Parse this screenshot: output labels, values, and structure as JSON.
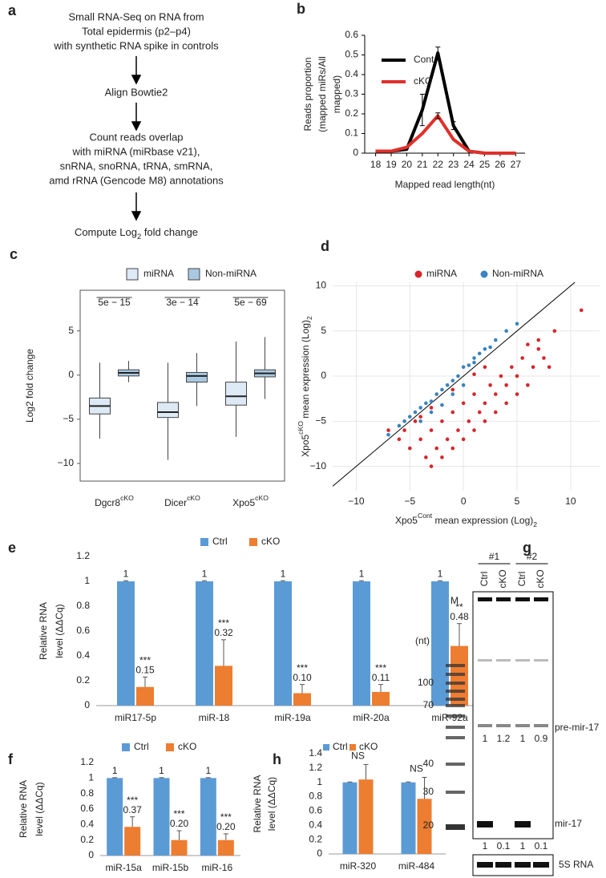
{
  "flowchart": {
    "panel": "a",
    "steps": [
      {
        "lines": [
          "Small RNA-Seq on RNA from",
          "Total epidermis (p2–p4)",
          "with synthetic RNA spike in controls"
        ]
      },
      {
        "lines": [
          "Align Bowtie2"
        ]
      },
      {
        "lines": [
          "Count reads overlap",
          "with miRNA (miRbase v21),",
          "snRNA, snoRNA, tRNA, smRNA,",
          "amd rRNA (Gencode M8) annotations"
        ]
      },
      {
        "parts": [
          {
            "t": "Compute Log"
          },
          {
            "sub": "2"
          },
          {
            "t": " fold change"
          }
        ]
      }
    ]
  },
  "chart_data": [
    {
      "panel": "b",
      "type": "line",
      "y_label": [
        "Reads proportion",
        "(mapped miRs/All",
        "mapped)"
      ],
      "x_label": "Mapped read length(nt)",
      "x": [
        18,
        19,
        20,
        21,
        22,
        23,
        24,
        25,
        26,
        27
      ],
      "xlim": [
        17.3,
        27.6
      ],
      "xticks": [
        18,
        19,
        20,
        21,
        22,
        23,
        24,
        25,
        26,
        27
      ],
      "ylim": [
        0,
        0.6
      ],
      "yticks": [
        0,
        0.1,
        0.2,
        0.3,
        0.4,
        0.5,
        0.6
      ],
      "legend": "upper right",
      "series": [
        {
          "name": "Cont.",
          "color": "#000000",
          "values": [
            0.01,
            0.01,
            0.02,
            0.22,
            0.51,
            0.14,
            0.01,
            0,
            0,
            0
          ],
          "errors": [
            null,
            null,
            null,
            0.08,
            0.03,
            0.02,
            null,
            null,
            null,
            null
          ]
        },
        {
          "name": "cKO",
          "color": "#e0302a",
          "values": [
            0.01,
            0.01,
            0.03,
            0.1,
            0.19,
            0.07,
            0.01,
            0,
            0,
            0
          ],
          "errors": [
            null,
            null,
            null,
            null,
            0.015,
            null,
            null,
            null,
            null,
            null
          ]
        }
      ]
    },
    {
      "panel": "c",
      "type": "box",
      "y_label": "Log2 fold change",
      "categories": [
        [
          {
            "t": "Dgcr8"
          },
          {
            "sup": "cKO"
          }
        ],
        [
          {
            "t": "Dicer"
          },
          {
            "sup": "cKO"
          }
        ],
        [
          {
            "t": "Xpo5"
          },
          {
            "sup": "cKO"
          }
        ]
      ],
      "p_values": [
        "5e − 15",
        "3e − 14",
        "5e − 69"
      ],
      "ylim": [
        -12,
        9.6
      ],
      "yticks": [
        {
          "value": -10,
          "label": "−10"
        },
        {
          "value": -5,
          "label": "−5"
        },
        0,
        5
      ],
      "legend": "top",
      "series": [
        {
          "name": "miRNA",
          "color": "#dde9f5",
          "boxes": [
            {
              "min": -7.2,
              "q1": -4.4,
              "median": -3.5,
              "q3": -2.6,
              "max": 1.4
            },
            {
              "min": -9.6,
              "q1": -4.8,
              "median": -4.2,
              "q3": -3.1,
              "max": 1.4
            },
            {
              "min": -7,
              "q1": -3.4,
              "median": -2.4,
              "q3": -0.8,
              "max": 3.8
            }
          ]
        },
        {
          "name": "Non-miRNA",
          "color": "#a9c9e2",
          "boxes": [
            {
              "min": -0.8,
              "q1": -0.1,
              "median": 0.25,
              "q3": 0.6,
              "max": 1.6
            },
            {
              "min": -3.5,
              "q1": -0.8,
              "median": -0.1,
              "q3": 0.3,
              "max": 2.5
            },
            {
              "min": -2.7,
              "q1": -0.2,
              "median": 0.2,
              "q3": 0.6,
              "max": 4.3
            }
          ]
        }
      ]
    },
    {
      "panel": "d",
      "type": "scatter",
      "x_label": [
        {
          "t": "Xpo5"
        },
        {
          "sup": "Cont"
        },
        {
          "t": " mean expression (Log)"
        },
        {
          "sub": "2"
        }
      ],
      "y_label": [
        {
          "t": "Xpo5"
        },
        {
          "sup": "cKO"
        },
        {
          "t": " mean expression (Log)"
        },
        {
          "sub": "2"
        }
      ],
      "xlim": [
        -12.2,
        12.7
      ],
      "ylim": [
        -12.7,
        10.4
      ],
      "xticks": [
        {
          "value": -10,
          "label": "−10"
        },
        {
          "value": -5,
          "label": "−5"
        },
        0,
        5,
        10
      ],
      "yticks": [
        {
          "value": -10,
          "label": "−10"
        },
        {
          "value": -5,
          "label": "−5"
        },
        0,
        5,
        10
      ],
      "grid": true,
      "identity_line": true,
      "legend": "top",
      "series": [
        {
          "name": "miRNA",
          "color": "#d7262b",
          "x": [
            -7,
            -6,
            -5.5,
            -5,
            -4.5,
            -4,
            -3.5,
            -3,
            -2.5,
            -2,
            -1.5,
            -1,
            -0.5,
            0,
            0.5,
            1,
            1.5,
            2,
            2.5,
            3,
            3.5,
            4,
            4.5,
            5,
            5.5,
            6,
            6.5,
            7,
            7.5,
            8,
            -3,
            -2,
            -1,
            0,
            1,
            2,
            3,
            4,
            5,
            11,
            -4,
            -3,
            -1,
            1,
            2,
            6,
            7,
            8.5
          ],
          "values": [
            -6,
            -7,
            -6,
            -8,
            -5,
            -7,
            -9,
            -6,
            -8,
            -5,
            -7,
            -4,
            -6,
            -3,
            -5,
            -2,
            -4,
            -3,
            -1,
            -2,
            0,
            -1,
            1,
            0,
            2,
            -1,
            1,
            3,
            2,
            1,
            -10,
            -9,
            -8,
            -7,
            -6,
            -5,
            -4,
            -3,
            -2,
            7.3,
            -4.5,
            -3.5,
            -1.5,
            0.2,
            1,
            3.5,
            4,
            5
          ]
        },
        {
          "name": "Non-miRNA",
          "color": "#3b83c0",
          "x": [
            -7,
            -6,
            -5.5,
            -5,
            -4.5,
            -4,
            -3.5,
            -3,
            -2.5,
            -2,
            -1.5,
            -1,
            -0.5,
            0,
            0.5,
            1,
            1.5,
            2,
            2.5,
            3,
            4,
            5,
            -4,
            -3,
            -2,
            -1,
            0,
            1
          ],
          "values": [
            -6.5,
            -5.5,
            -5,
            -4.5,
            -4,
            -3.5,
            -3,
            -2.8,
            -2,
            -1.5,
            -1,
            -0.5,
            0,
            1,
            1.2,
            2,
            2.5,
            3,
            3.2,
            4,
            5,
            5.8,
            -5,
            -4,
            -3.2,
            -2,
            -1,
            1.5
          ]
        }
      ]
    },
    {
      "panel": "e",
      "type": "bar",
      "y_label": [
        "Relative RNA",
        "level (ΔΔCq)"
      ],
      "categories": [
        "miR17-5p",
        "miR-18",
        "miR-19a",
        "miR-20a",
        "miR-92a"
      ],
      "ylim": [
        0,
        1.2
      ],
      "yticks": [
        0,
        0.2,
        0.4,
        0.6,
        0.8,
        1,
        1.2
      ],
      "legend": "top",
      "data_labels": true,
      "significance": [
        "***",
        "***",
        "***",
        "***",
        "**"
      ],
      "series": [
        {
          "name": "Ctrl",
          "color": "#5b9bd5",
          "values": [
            1,
            1,
            1,
            1,
            1
          ],
          "errors": [
            0.005,
            0.005,
            0.005,
            0.005,
            0.005
          ]
        },
        {
          "name": "cKO",
          "color": "#ed7d31",
          "values": [
            0.15,
            0.32,
            0.1,
            0.11,
            0.48
          ],
          "value_labels": [
            "0.15",
            "0.32",
            "0.10",
            "0.11",
            "0.48"
          ],
          "errors": [
            0.08,
            0.21,
            0.07,
            0.06,
            0.18
          ]
        }
      ]
    },
    {
      "panel": "f",
      "type": "bar",
      "y_label": [
        "Relative RNA",
        "level (ΔΔCq)"
      ],
      "categories": [
        "miR-15a",
        "miR-15b",
        "miR-16"
      ],
      "ylim": [
        0,
        1.2
      ],
      "yticks": [
        0,
        0.2,
        0.4,
        0.6,
        0.8,
        1,
        1.2
      ],
      "legend": "top",
      "data_labels": true,
      "significance": [
        "***",
        "***",
        "***"
      ],
      "series": [
        {
          "name": "Ctrl",
          "color": "#5b9bd5",
          "values": [
            1,
            1,
            1
          ],
          "errors": [
            0.005,
            0.005,
            0.005
          ]
        },
        {
          "name": "cKO",
          "color": "#ed7d31",
          "values": [
            0.37,
            0.2,
            0.2
          ],
          "value_labels": [
            "0.37",
            "0.20",
            "0.20"
          ],
          "errors": [
            0.13,
            0.12,
            0.08
          ]
        }
      ]
    },
    {
      "panel": "h",
      "type": "bar",
      "y_label": [
        "Relative RNA",
        "level (ΔΔCq)"
      ],
      "categories": [
        "miR-320",
        "miR-484"
      ],
      "ylim": [
        0,
        1.4
      ],
      "yticks": [
        0,
        0.2,
        0.4,
        0.6,
        0.8,
        1,
        1.2,
        1.4
      ],
      "legend": "top",
      "significance": [
        "NS",
        "NS"
      ],
      "series": [
        {
          "name": "Ctrl",
          "color": "#5b9bd5",
          "values": [
            1,
            1
          ],
          "errors": [
            0.005,
            0.005
          ]
        },
        {
          "name": "cKO",
          "color": "#ed7d31",
          "values": [
            1.04,
            0.77
          ],
          "errors": [
            0.21,
            0.3
          ]
        }
      ]
    }
  ],
  "gel": {
    "panel": "g",
    "marker_lane": "M",
    "groups": [
      "#1",
      "#2"
    ],
    "lanes": [
      "Ctrl",
      "cKO",
      "Ctrl",
      "cKO"
    ],
    "unit": "(nt)",
    "markers": [
      100,
      70,
      40,
      30,
      20
    ],
    "bands": [
      "pre-mir-17",
      "mir-17"
    ],
    "quant": [
      [
        1,
        1.2,
        1,
        0.9
      ],
      [
        1,
        0.1,
        1,
        0.1
      ]
    ],
    "loading": "5S RNA"
  }
}
